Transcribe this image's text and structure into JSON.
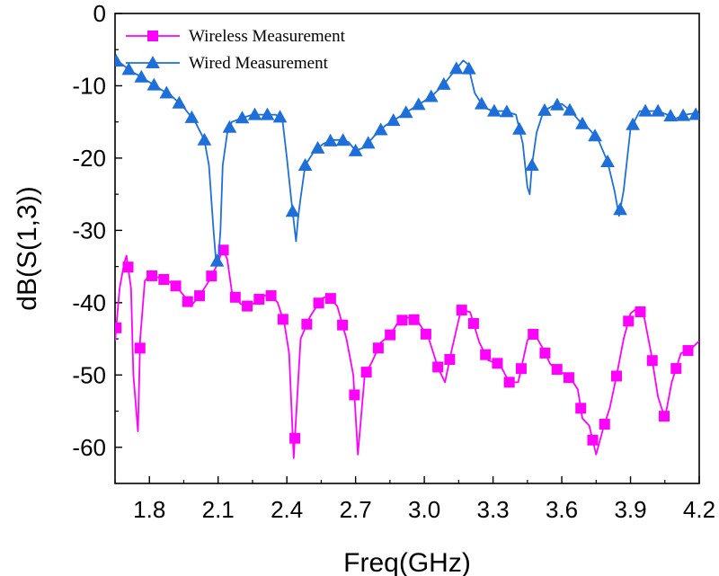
{
  "chart_data": {
    "type": "line",
    "xlabel": "Freq(GHz)",
    "ylabel": "dB(S(1,3))",
    "xlim": [
      1.65,
      4.2
    ],
    "ylim": [
      -65,
      0
    ],
    "xticks": [
      1.8,
      2.1,
      2.4,
      2.7,
      3.0,
      3.3,
      3.6,
      3.9,
      4.2
    ],
    "xtick_labels": [
      "1.8",
      "2.1",
      "2.4",
      "2.7",
      "3.0",
      "3.3",
      "3.6",
      "3.9",
      "4.2"
    ],
    "yticks": [
      0,
      -10,
      -20,
      -30,
      -40,
      -50,
      -60
    ],
    "ytick_labels": [
      "0",
      "-10",
      "-20",
      "-30",
      "-40",
      "-50",
      "-60"
    ],
    "legend_position": "top-left",
    "grid": false,
    "series": [
      {
        "name": "Wireless Measurement",
        "color": "#FF00FF",
        "marker": "square",
        "x": [
          1.65,
          1.67,
          1.69,
          1.7,
          1.72,
          1.73,
          1.75,
          1.76,
          1.78,
          1.8,
          1.84,
          1.88,
          1.91,
          1.95,
          1.98,
          2.02,
          2.06,
          2.1,
          2.12,
          2.14,
          2.16,
          2.18,
          2.2,
          2.23,
          2.26,
          2.3,
          2.33,
          2.36,
          2.39,
          2.41,
          2.43,
          2.46,
          2.5,
          2.55,
          2.58,
          2.62,
          2.66,
          2.69,
          2.71,
          2.74,
          2.77,
          2.81,
          2.85,
          2.88,
          2.92,
          2.97,
          3.02,
          3.06,
          3.09,
          3.12,
          3.16,
          3.2,
          3.24,
          3.28,
          3.33,
          3.37,
          3.41,
          3.45,
          3.48,
          3.52,
          3.55,
          3.59,
          3.62,
          3.65,
          3.67,
          3.69,
          3.72,
          3.75,
          3.78,
          3.81,
          3.84,
          3.87,
          3.9,
          3.93,
          3.96,
          3.99,
          4.02,
          4.05,
          4.08,
          4.12,
          4.16,
          4.2
        ],
        "y": [
          -45.3,
          -38,
          -34.5,
          -33.5,
          -38,
          -50,
          -57.8,
          -45,
          -37,
          -36.2,
          -36.5,
          -37,
          -37.5,
          -39,
          -40.5,
          -39,
          -37,
          -34.5,
          -32.5,
          -34,
          -38.5,
          -39.5,
          -40.2,
          -40.5,
          -40,
          -39,
          -39,
          -40,
          -43,
          -47,
          -61.5,
          -45,
          -42,
          -39.5,
          -39,
          -40.5,
          -45,
          -50,
          -61,
          -50,
          -48.3,
          -45.5,
          -44.5,
          -43,
          -42,
          -42.5,
          -45,
          -49,
          -51,
          -46.5,
          -41,
          -41.3,
          -45.5,
          -48,
          -48.5,
          -51,
          -51,
          -45.2,
          -44.2,
          -46.5,
          -48.5,
          -49.5,
          -50,
          -51,
          -52,
          -56,
          -57,
          -61,
          -57.5,
          -54.5,
          -50,
          -45,
          -41.5,
          -40.7,
          -42,
          -47,
          -53,
          -56,
          -51,
          -47,
          -46.5,
          -45.3
        ]
      },
      {
        "name": "Wired Measurement",
        "color": "#1E6FD9",
        "marker": "triangle",
        "x": [
          1.65,
          1.68,
          1.72,
          1.75,
          1.8,
          1.85,
          1.9,
          1.95,
          2.0,
          2.04,
          2.06,
          2.08,
          2.09,
          2.1,
          2.11,
          2.12,
          2.14,
          2.16,
          2.2,
          2.25,
          2.3,
          2.35,
          2.38,
          2.4,
          2.42,
          2.44,
          2.45,
          2.46,
          2.48,
          2.52,
          2.56,
          2.6,
          2.64,
          2.67,
          2.7,
          2.74,
          2.78,
          2.83,
          2.88,
          2.93,
          2.98,
          3.03,
          3.08,
          3.13,
          3.17,
          3.19,
          3.22,
          3.26,
          3.3,
          3.35,
          3.4,
          3.43,
          3.45,
          3.46,
          3.47,
          3.49,
          3.52,
          3.56,
          3.6,
          3.64,
          3.68,
          3.72,
          3.76,
          3.8,
          3.83,
          3.85,
          3.87,
          3.9,
          3.94,
          3.98,
          4.02,
          4.06,
          4.1,
          4.14,
          4.18,
          4.2
        ],
        "y": [
          -6.5,
          -7,
          -8,
          -8.5,
          -9.5,
          -10.5,
          -11.5,
          -13,
          -15,
          -17.5,
          -21,
          -30,
          -34,
          -34.5,
          -30,
          -21,
          -16.5,
          -15,
          -14.5,
          -14,
          -14,
          -14,
          -14.5,
          -20,
          -26,
          -31.5,
          -28,
          -25.5,
          -21,
          -19,
          -18,
          -17.5,
          -17.5,
          -17.8,
          -19,
          -18.5,
          -17,
          -15.5,
          -14.5,
          -13.5,
          -12.5,
          -11.5,
          -10,
          -8,
          -6.5,
          -7,
          -11,
          -13,
          -13.5,
          -13.5,
          -14,
          -18,
          -24,
          -25,
          -21,
          -16.5,
          -13.5,
          -12.8,
          -12.5,
          -13.5,
          -15,
          -16,
          -17.5,
          -20.5,
          -24.5,
          -28,
          -24.5,
          -16,
          -13.5,
          -13.5,
          -13.5,
          -14,
          -14.5,
          -14,
          -13.8,
          -14.5
        ]
      }
    ]
  }
}
